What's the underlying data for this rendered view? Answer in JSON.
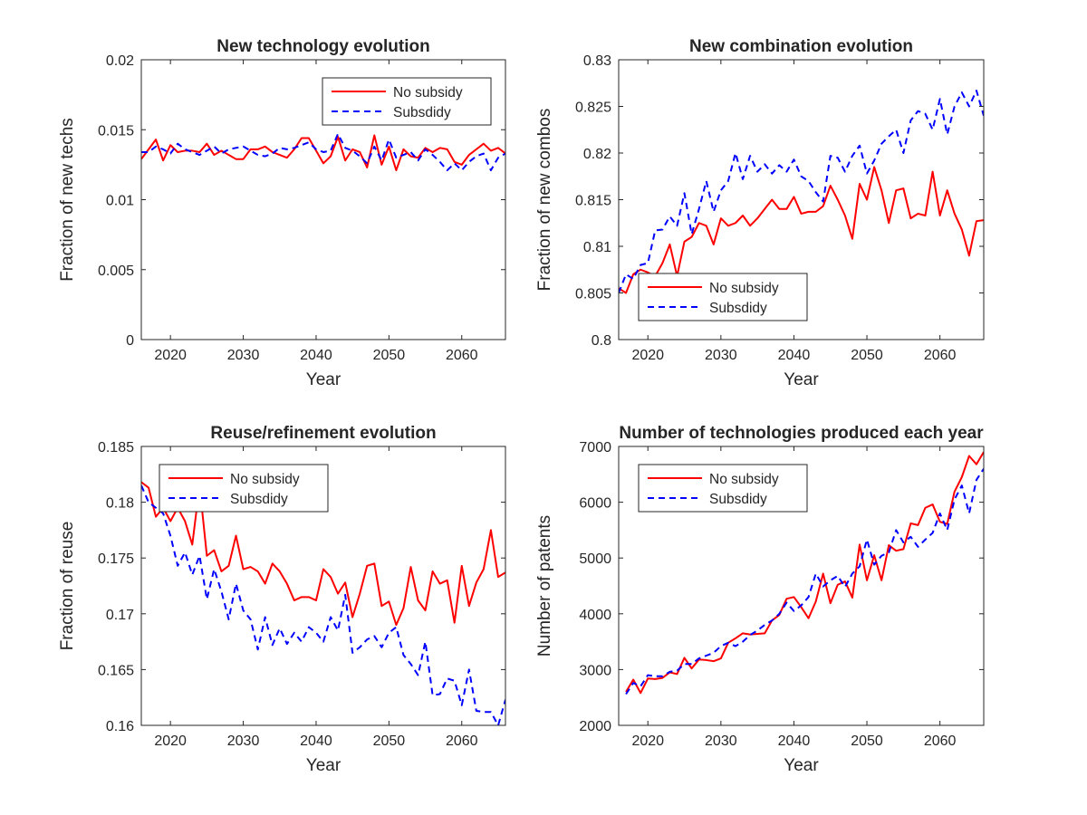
{
  "chart_data": [
    {
      "type": "line",
      "title": "New technology evolution",
      "xlabel": "Year",
      "ylabel": "Fraction of new techs",
      "xlim": [
        2016,
        2066
      ],
      "ylim": [
        0,
        0.02
      ],
      "xticks": [
        2020,
        2030,
        2040,
        2050,
        2060
      ],
      "yticks": [
        0,
        0.005,
        0.01,
        0.015,
        0.02
      ],
      "xtick_labels": [
        "2020",
        "2030",
        "2040",
        "2050",
        "2060"
      ],
      "ytick_labels": [
        "0",
        "0.005",
        "0.01",
        "0.015",
        "0.02"
      ],
      "legend_position": "top-right",
      "x": [
        2016,
        2017,
        2018,
        2019,
        2020,
        2021,
        2022,
        2023,
        2024,
        2025,
        2026,
        2027,
        2028,
        2029,
        2030,
        2031,
        2032,
        2033,
        2034,
        2035,
        2036,
        2037,
        2038,
        2039,
        2040,
        2041,
        2042,
        2043,
        2044,
        2045,
        2046,
        2047,
        2048,
        2049,
        2050,
        2051,
        2052,
        2053,
        2054,
        2055,
        2056,
        2057,
        2058,
        2059,
        2060,
        2061,
        2062,
        2063,
        2064,
        2065,
        2066
      ],
      "series": [
        {
          "name": "No subsidy",
          "color": "#ff0000",
          "dash": "solid",
          "values": [
            0.0129,
            0.0136,
            0.0143,
            0.0128,
            0.0139,
            0.0134,
            0.0135,
            0.0135,
            0.0134,
            0.014,
            0.0132,
            0.0135,
            0.0132,
            0.0129,
            0.0129,
            0.0136,
            0.0136,
            0.0138,
            0.0134,
            0.0132,
            0.013,
            0.0136,
            0.0144,
            0.0144,
            0.0135,
            0.0126,
            0.0131,
            0.0145,
            0.0128,
            0.0136,
            0.0134,
            0.0123,
            0.0146,
            0.0125,
            0.0138,
            0.0121,
            0.0136,
            0.0131,
            0.013,
            0.0137,
            0.0134,
            0.0137,
            0.0136,
            0.0127,
            0.0125,
            0.0132,
            0.0136,
            0.014,
            0.0135,
            0.0137,
            0.0133
          ]
        },
        {
          "name": "Subsdidy",
          "color": "#0000ff",
          "dash": "dashed",
          "values": [
            0.0134,
            0.0134,
            0.0138,
            0.0136,
            0.0133,
            0.014,
            0.0136,
            0.0134,
            0.0132,
            0.0135,
            0.0138,
            0.0133,
            0.0136,
            0.0137,
            0.0138,
            0.0135,
            0.0132,
            0.0131,
            0.0133,
            0.0137,
            0.0136,
            0.0137,
            0.0139,
            0.0141,
            0.0136,
            0.0134,
            0.0135,
            0.0147,
            0.0137,
            0.0135,
            0.0131,
            0.0126,
            0.0138,
            0.0128,
            0.0143,
            0.013,
            0.0132,
            0.0134,
            0.0128,
            0.0136,
            0.0132,
            0.0127,
            0.0121,
            0.0126,
            0.0121,
            0.0127,
            0.0131,
            0.0133,
            0.0121,
            0.013,
            0.0133
          ]
        }
      ]
    },
    {
      "type": "line",
      "title": "New combination evolution",
      "xlabel": "Year",
      "ylabel": "Fraction of new combos",
      "xlim": [
        2016,
        2066
      ],
      "ylim": [
        0.8,
        0.83
      ],
      "xticks": [
        2020,
        2030,
        2040,
        2050,
        2060
      ],
      "yticks": [
        0.8,
        0.805,
        0.81,
        0.815,
        0.82,
        0.825,
        0.83
      ],
      "xtick_labels": [
        "2020",
        "2030",
        "2040",
        "2050",
        "2060"
      ],
      "ytick_labels": [
        "0.8",
        "0.805",
        "0.81",
        "0.815",
        "0.82",
        "0.825",
        "0.83"
      ],
      "legend_position": "bottom-left",
      "x": [
        2016,
        2017,
        2018,
        2019,
        2020,
        2021,
        2022,
        2023,
        2024,
        2025,
        2026,
        2027,
        2028,
        2029,
        2030,
        2031,
        2032,
        2033,
        2034,
        2035,
        2036,
        2037,
        2038,
        2039,
        2040,
        2041,
        2042,
        2043,
        2044,
        2045,
        2046,
        2047,
        2048,
        2049,
        2050,
        2051,
        2052,
        2053,
        2054,
        2055,
        2056,
        2057,
        2058,
        2059,
        2060,
        2061,
        2062,
        2063,
        2064,
        2065,
        2066
      ],
      "series": [
        {
          "name": "No subsidy",
          "color": "#ff0000",
          "dash": "solid",
          "values": [
            0.8055,
            0.805,
            0.807,
            0.8075,
            0.8072,
            0.8068,
            0.8082,
            0.8102,
            0.8068,
            0.8105,
            0.811,
            0.8125,
            0.8122,
            0.8102,
            0.813,
            0.8122,
            0.8125,
            0.8133,
            0.8122,
            0.813,
            0.814,
            0.815,
            0.814,
            0.814,
            0.8153,
            0.8135,
            0.8137,
            0.8137,
            0.8143,
            0.8165,
            0.815,
            0.8133,
            0.8108,
            0.8167,
            0.815,
            0.8185,
            0.816,
            0.8125,
            0.816,
            0.8162,
            0.813,
            0.8135,
            0.8133,
            0.818,
            0.8133,
            0.816,
            0.8135,
            0.8118,
            0.809,
            0.8127,
            0.8128
          ]
        },
        {
          "name": "Subsdidy",
          "color": "#0000ff",
          "dash": "dashed",
          "values": [
            0.805,
            0.807,
            0.8065,
            0.808,
            0.8082,
            0.8117,
            0.8118,
            0.8132,
            0.8122,
            0.8157,
            0.8113,
            0.814,
            0.817,
            0.8137,
            0.816,
            0.817,
            0.82,
            0.8172,
            0.8197,
            0.818,
            0.8188,
            0.8178,
            0.8187,
            0.818,
            0.8193,
            0.8175,
            0.817,
            0.8158,
            0.8148,
            0.8197,
            0.8195,
            0.818,
            0.8197,
            0.8208,
            0.8178,
            0.8192,
            0.821,
            0.8218,
            0.8225,
            0.82,
            0.8235,
            0.8245,
            0.8242,
            0.8225,
            0.8258,
            0.822,
            0.825,
            0.8265,
            0.825,
            0.8267,
            0.824
          ]
        }
      ]
    },
    {
      "type": "line",
      "title": "Reuse/refinement evolution",
      "xlabel": "Year",
      "ylabel": "Fraction of reuse",
      "xlim": [
        2016,
        2066
      ],
      "ylim": [
        0.16,
        0.185
      ],
      "xticks": [
        2020,
        2030,
        2040,
        2050,
        2060
      ],
      "yticks": [
        0.16,
        0.165,
        0.17,
        0.175,
        0.18,
        0.185
      ],
      "xtick_labels": [
        "2020",
        "2030",
        "2040",
        "2050",
        "2060"
      ],
      "ytick_labels": [
        "0.16",
        "0.165",
        "0.17",
        "0.175",
        "0.18",
        "0.185"
      ],
      "legend_position": "top-left",
      "x": [
        2016,
        2017,
        2018,
        2019,
        2020,
        2021,
        2022,
        2023,
        2024,
        2025,
        2026,
        2027,
        2028,
        2029,
        2030,
        2031,
        2032,
        2033,
        2034,
        2035,
        2036,
        2037,
        2038,
        2039,
        2040,
        2041,
        2042,
        2043,
        2044,
        2045,
        2046,
        2047,
        2048,
        2049,
        2050,
        2051,
        2052,
        2053,
        2054,
        2055,
        2056,
        2057,
        2058,
        2059,
        2060,
        2061,
        2062,
        2063,
        2064,
        2065,
        2066
      ],
      "series": [
        {
          "name": "No subsidy",
          "color": "#ff0000",
          "dash": "solid",
          "values": [
            0.1818,
            0.1813,
            0.1787,
            0.1795,
            0.1783,
            0.1795,
            0.1783,
            0.1762,
            0.1815,
            0.1752,
            0.1757,
            0.1738,
            0.1743,
            0.177,
            0.174,
            0.1742,
            0.1738,
            0.1727,
            0.1745,
            0.1738,
            0.1727,
            0.1712,
            0.1715,
            0.1715,
            0.1712,
            0.174,
            0.1733,
            0.1718,
            0.1728,
            0.1697,
            0.1718,
            0.1743,
            0.1745,
            0.1707,
            0.1711,
            0.169,
            0.1705,
            0.1742,
            0.1712,
            0.1703,
            0.1738,
            0.1727,
            0.173,
            0.1692,
            0.1743,
            0.1707,
            0.1728,
            0.174,
            0.1775,
            0.1733,
            0.1737
          ]
        },
        {
          "name": "Subsdidy",
          "color": "#0000ff",
          "dash": "dashed",
          "values": [
            0.1815,
            0.18,
            0.1795,
            0.179,
            0.177,
            0.1743,
            0.1755,
            0.1735,
            0.1752,
            0.1713,
            0.174,
            0.172,
            0.1695,
            0.1727,
            0.1703,
            0.1695,
            0.1668,
            0.1697,
            0.1672,
            0.1687,
            0.1673,
            0.1683,
            0.1675,
            0.1688,
            0.1683,
            0.1675,
            0.1697,
            0.1685,
            0.1717,
            0.1665,
            0.167,
            0.1677,
            0.168,
            0.167,
            0.1683,
            0.1688,
            0.1663,
            0.1655,
            0.1645,
            0.1675,
            0.1627,
            0.1628,
            0.1642,
            0.164,
            0.1618,
            0.165,
            0.1613,
            0.1612,
            0.1612,
            0.16,
            0.1623
          ]
        }
      ]
    },
    {
      "type": "line",
      "title": "Number of technologies produced each year",
      "xlabel": "Year",
      "ylabel": "Number of patents",
      "xlim": [
        2016,
        2066
      ],
      "ylim": [
        2000,
        7000
      ],
      "xticks": [
        2020,
        2030,
        2040,
        2050,
        2060
      ],
      "yticks": [
        2000,
        3000,
        4000,
        5000,
        6000,
        7000
      ],
      "xtick_labels": [
        "2020",
        "2030",
        "2040",
        "2050",
        "2060"
      ],
      "ytick_labels": [
        "2000",
        "3000",
        "4000",
        "5000",
        "6000",
        "7000"
      ],
      "legend_position": "top-left",
      "x": [
        2017,
        2018,
        2019,
        2020,
        2021,
        2022,
        2023,
        2024,
        2025,
        2026,
        2027,
        2028,
        2029,
        2030,
        2031,
        2032,
        2033,
        2034,
        2035,
        2036,
        2037,
        2038,
        2039,
        2040,
        2041,
        2042,
        2043,
        2044,
        2045,
        2046,
        2047,
        2048,
        2049,
        2050,
        2051,
        2052,
        2053,
        2054,
        2055,
        2056,
        2057,
        2058,
        2059,
        2060,
        2061,
        2062,
        2063,
        2064,
        2065,
        2066
      ],
      "series": [
        {
          "name": "No subsidy",
          "color": "#ff0000",
          "dash": "solid",
          "values": [
            2600,
            2820,
            2580,
            2840,
            2830,
            2850,
            2950,
            2920,
            3210,
            3020,
            3180,
            3170,
            3150,
            3200,
            3480,
            3560,
            3650,
            3630,
            3640,
            3650,
            3880,
            3980,
            4270,
            4300,
            4120,
            3920,
            4220,
            4720,
            4190,
            4520,
            4580,
            4290,
            5240,
            4600,
            5050,
            4600,
            5230,
            5130,
            5160,
            5620,
            5590,
            5900,
            5960,
            5650,
            5610,
            6190,
            6450,
            6830,
            6680,
            6900
          ]
        },
        {
          "name": "Subsdidy",
          "color": "#0000ff",
          "dash": "dashed",
          "values": [
            2560,
            2760,
            2700,
            2900,
            2880,
            2880,
            2960,
            2980,
            3100,
            3100,
            3200,
            3250,
            3300,
            3420,
            3480,
            3420,
            3500,
            3620,
            3700,
            3800,
            3880,
            4000,
            4200,
            4050,
            4150,
            4300,
            4720,
            4490,
            4600,
            4680,
            4480,
            4720,
            4850,
            5330,
            4880,
            5040,
            5100,
            5500,
            5280,
            5380,
            5200,
            5330,
            5450,
            5800,
            5500,
            6050,
            6300,
            5800,
            6400,
            6600
          ]
        }
      ]
    }
  ]
}
